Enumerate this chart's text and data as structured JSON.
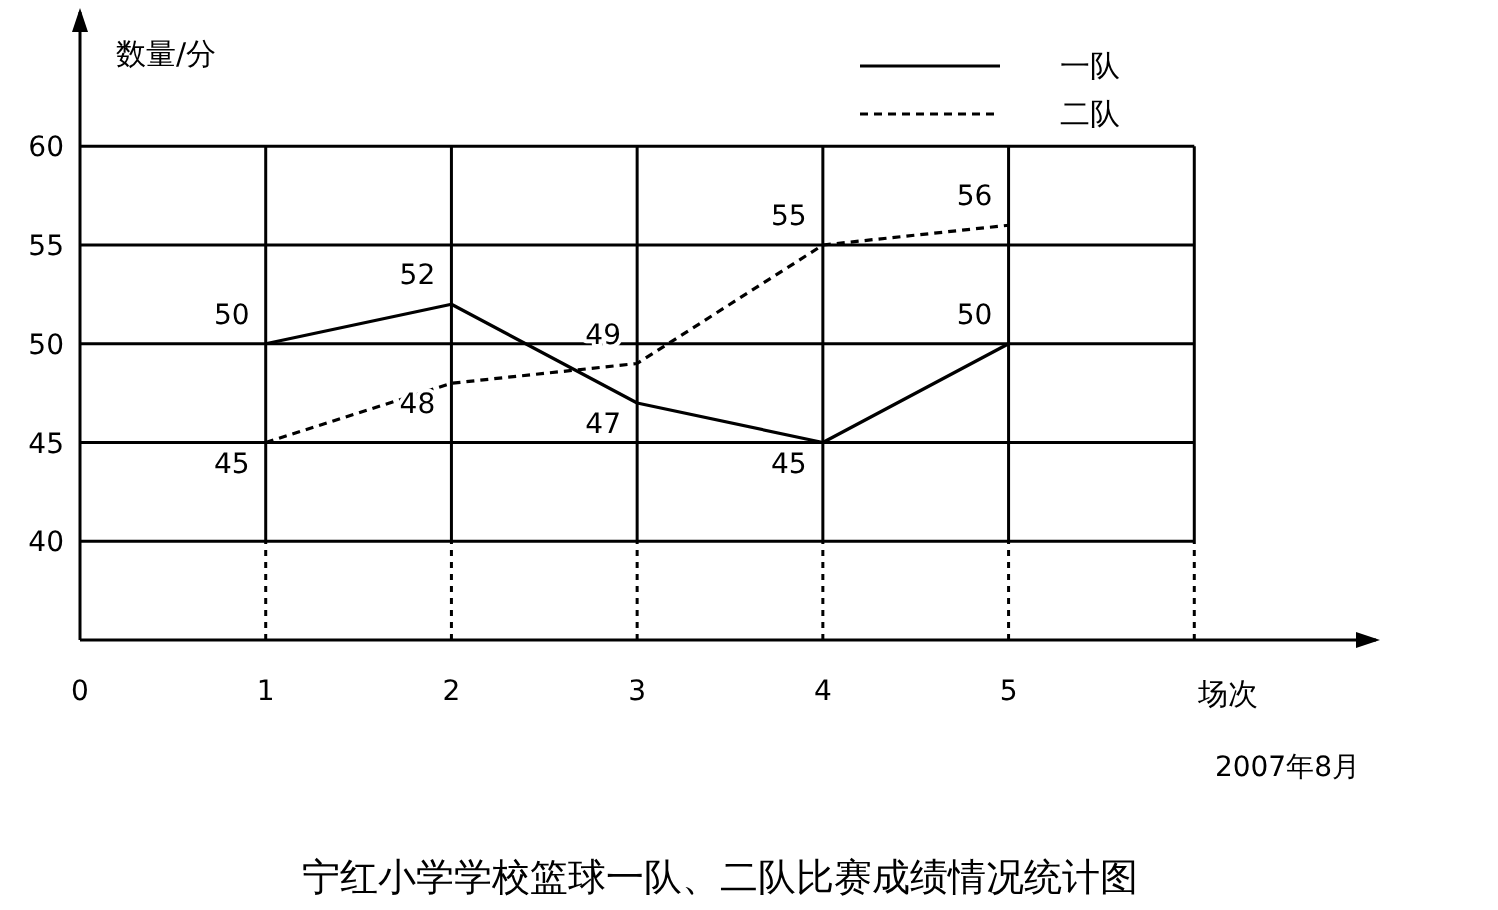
{
  "chart_data": {
    "type": "line",
    "title": "宁红小学学校篮球一队、二队比赛成绩情况统计图",
    "xlabel": "场次",
    "ylabel": "数量/分",
    "annotations": [
      "2007年8月"
    ],
    "x": [
      1,
      2,
      3,
      4,
      5
    ],
    "xlim": [
      0,
      7
    ],
    "xticks": [
      0,
      1,
      2,
      3,
      4,
      5,
      {
        "value": 6,
        "label": null
      }
    ],
    "ylim": [
      35,
      67
    ],
    "yticks": [
      40,
      45,
      50,
      55,
      60
    ],
    "grid": true,
    "legend": "top right",
    "data_labels": true,
    "marker": "none",
    "series": [
      {
        "name": "一队",
        "color": "#000000",
        "line_style": "solid",
        "values": [
          50,
          52,
          47,
          45,
          50
        ]
      },
      {
        "name": "二队",
        "color": "#000000",
        "line_style": "dashed",
        "values": [
          45,
          48,
          49,
          55,
          56
        ]
      }
    ]
  }
}
